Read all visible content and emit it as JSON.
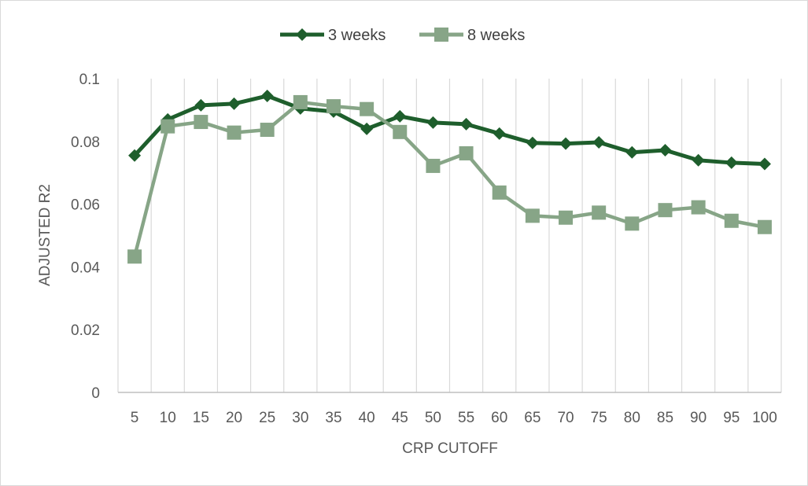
{
  "chart_data": {
    "type": "line",
    "title": "",
    "xlabel": "CRP CUTOFF",
    "ylabel": "ADJUSTED R2",
    "categories": [
      "5",
      "10",
      "15",
      "20",
      "25",
      "30",
      "35",
      "40",
      "45",
      "50",
      "55",
      "60",
      "65",
      "70",
      "75",
      "80",
      "85",
      "90",
      "95",
      "100"
    ],
    "ylim": [
      0,
      0.1
    ],
    "yticks": [
      "0",
      "0.02",
      "0.04",
      "0.06",
      "0.08",
      "0.1"
    ],
    "ytick_values": [
      0,
      0.02,
      0.04,
      0.06,
      0.08,
      0.1
    ],
    "grid": "vertical",
    "legend": "top-center",
    "series": [
      {
        "name": "3 weeks",
        "color": "#1e5e2c",
        "marker": "diamond",
        "values": [
          0.0755,
          0.087,
          0.0915,
          0.092,
          0.0945,
          0.0905,
          0.0895,
          0.084,
          0.088,
          0.086,
          0.0855,
          0.0825,
          0.0795,
          0.0793,
          0.0797,
          0.0765,
          0.0772,
          0.074,
          0.0732,
          0.0728
        ]
      },
      {
        "name": "8 weeks",
        "color": "#87a587",
        "marker": "square",
        "values": [
          0.0433,
          0.0848,
          0.0862,
          0.0828,
          0.0837,
          0.0925,
          0.0912,
          0.0903,
          0.083,
          0.0722,
          0.0762,
          0.0637,
          0.0563,
          0.0557,
          0.0573,
          0.0538,
          0.0581,
          0.059,
          0.0547,
          0.0527
        ]
      }
    ]
  }
}
